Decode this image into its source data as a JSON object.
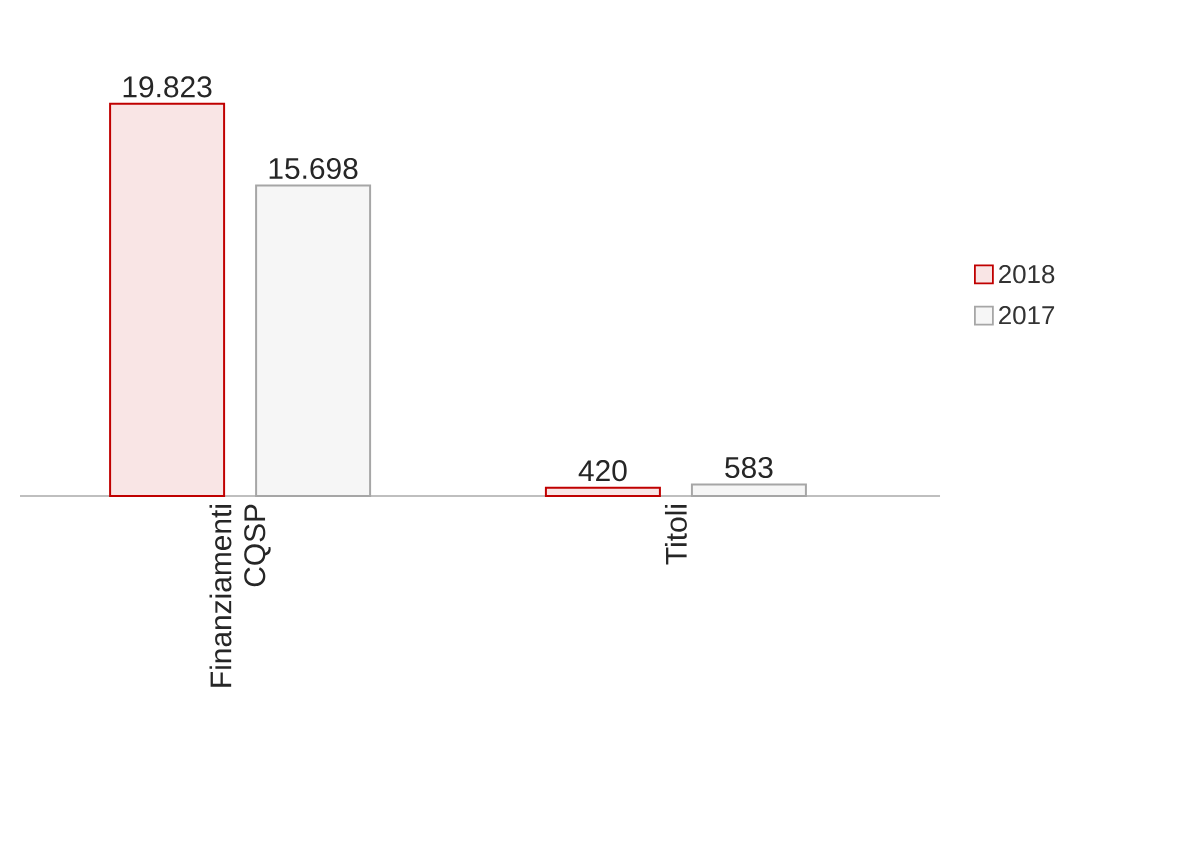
{
  "chart_data": {
    "type": "bar",
    "categories": [
      "Finanziamenti CQSP",
      "Titoli"
    ],
    "series": [
      {
        "name": "2018",
        "color": "#c00000",
        "values": [
          19823,
          420
        ],
        "value_labels": [
          "19.823",
          "420"
        ]
      },
      {
        "name": "2017",
        "color": "#a6a6a6",
        "values": [
          15698,
          583
        ],
        "value_labels": [
          "15.698",
          "583"
        ]
      }
    ],
    "legend": "right"
  }
}
